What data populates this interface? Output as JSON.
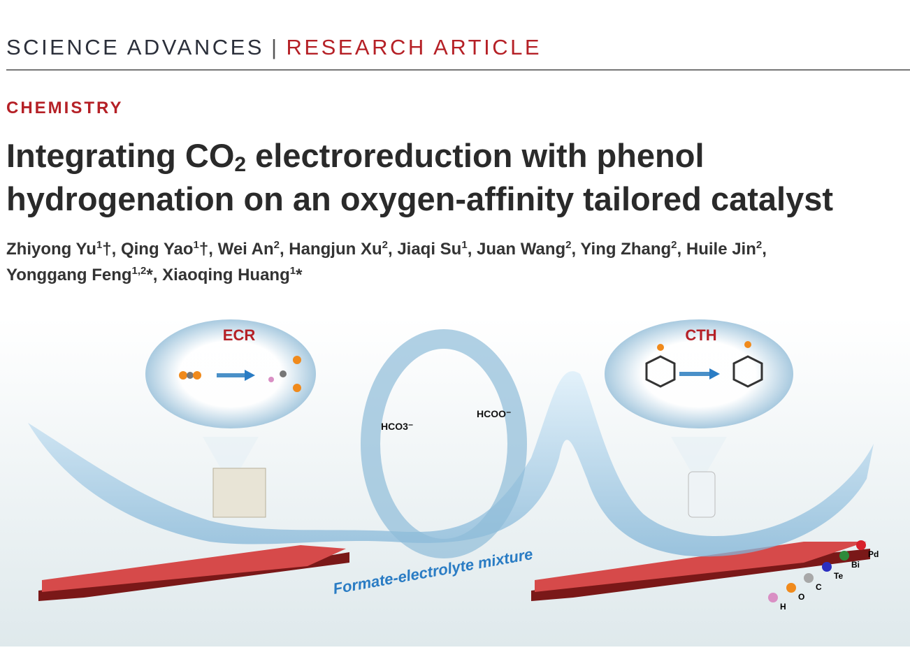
{
  "header": {
    "journal": "SCIENCE ADVANCES",
    "separator": "|",
    "article_type": "RESEARCH ARTICLE"
  },
  "subject": "CHEMISTRY",
  "title": {
    "part1": "Integrating CO",
    "sub": "2",
    "part2": " electroreduction with phenol hydrogenation on an oxygen-affinity tailored catalyst"
  },
  "authors": [
    {
      "name": "Zhiyong Yu",
      "sup": "1",
      "mark": "†"
    },
    {
      "name": "Qing Yao",
      "sup": "1",
      "mark": "†"
    },
    {
      "name": "Wei An",
      "sup": "2",
      "mark": ""
    },
    {
      "name": "Hangjun Xu",
      "sup": "2",
      "mark": ""
    },
    {
      "name": "Jiaqi Su",
      "sup": "1",
      "mark": ""
    },
    {
      "name": "Juan Wang",
      "sup": "2",
      "mark": ""
    },
    {
      "name": "Ying Zhang",
      "sup": "2",
      "mark": ""
    },
    {
      "name": "Huile Jin",
      "sup": "2",
      "mark": ""
    },
    {
      "name": "Yonggang Feng",
      "sup": "1,2",
      "mark": "*"
    },
    {
      "name": "Xiaoqing Huang",
      "sup": "1",
      "mark": "*"
    }
  ],
  "figure": {
    "ecr_label": "ECR",
    "cth_label": "CTH",
    "hco3_label": "HCO3⁻",
    "hcoo_label": "HCOO⁻",
    "mixture_label": "Formate-electrolyte mixture",
    "legend": [
      {
        "symbol": "H",
        "color": "#d98fc4"
      },
      {
        "symbol": "O",
        "color": "#f08a1c"
      },
      {
        "symbol": "C",
        "color": "#a8a8a8"
      },
      {
        "symbol": "Te",
        "color": "#2b2fc0"
      },
      {
        "symbol": "Bi",
        "color": "#2e8a3a"
      },
      {
        "symbol": "Pd",
        "color": "#d8202a"
      }
    ],
    "colors": {
      "accent_red": "#b52026",
      "water": "#7fb3d6",
      "label_blue": "#2a7cc4"
    }
  }
}
